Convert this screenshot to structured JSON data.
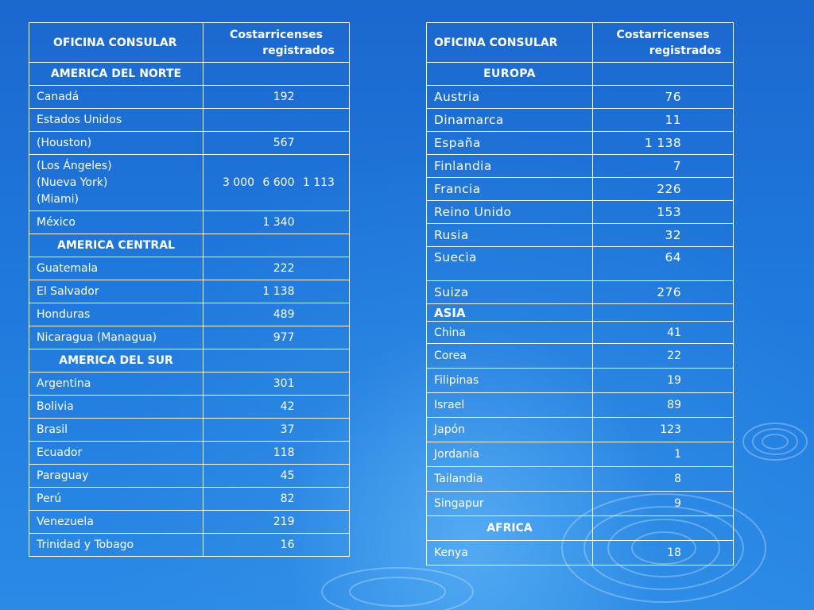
{
  "left_table": {
    "header": {
      "office": "OFICINA CONSULAR",
      "count_l1": "Costarricenses",
      "count_l2": "registrados"
    },
    "america_norte": "AMERICA DEL NORTE",
    "canada": {
      "name": "Canadá",
      "count": "192"
    },
    "estados_unidos": "Estados Unidos",
    "houston": {
      "name": "(Houston)",
      "count": "567"
    },
    "usa_cities": {
      "names": [
        "(Los Ángeles)",
        "(Nueva York)",
        "(Miami)"
      ],
      "counts": [
        "3 000",
        "6 600",
        "1 113"
      ]
    },
    "mexico": {
      "name": "México",
      "count": "1 340"
    },
    "america_central": "AMERICA CENTRAL",
    "central_rows": [
      {
        "name": "Guatemala",
        "count": "222"
      },
      {
        "name": "El Salvador",
        "count": "1 138"
      },
      {
        "name": "Honduras",
        "count": "489"
      },
      {
        "name": "Nicaragua (Managua)",
        "count": "977"
      }
    ],
    "america_sur": "AMERICA DEL SUR",
    "sur_rows": [
      {
        "name": "Argentina",
        "count": "301"
      },
      {
        "name": "Bolivia",
        "count": "42"
      },
      {
        "name": "Brasil",
        "count": "37"
      },
      {
        "name": "Ecuador",
        "count": "118"
      },
      {
        "name": "Paraguay",
        "count": "45"
      },
      {
        "name": "Perú",
        "count": "82"
      },
      {
        "name": "Venezuela",
        "count": "219"
      },
      {
        "name": "Trinidad y Tobago",
        "count": "16"
      }
    ]
  },
  "right_table": {
    "header": {
      "office": "OFICINA CONSULAR",
      "count_l1": "Costarricenses",
      "count_l2": "registrados"
    },
    "europa": "EUROPA",
    "europa_rows": [
      {
        "name": "Austria",
        "count": "76"
      },
      {
        "name": "Dinamarca",
        "count": "11"
      },
      {
        "name": "España",
        "count": "1 138"
      },
      {
        "name": "Finlandia",
        "count": "7"
      },
      {
        "name": "Francia",
        "count": "226"
      },
      {
        "name": "Reino Unido",
        "count": "153"
      },
      {
        "name": "Rusia",
        "count": "32"
      },
      {
        "name": "Suecia",
        "count": "64"
      },
      {
        "name": "Suiza",
        "count": "276"
      }
    ],
    "asia": "ASIA",
    "asia_rows": [
      {
        "name": "China",
        "count": "41"
      },
      {
        "name": "Corea",
        "count": "22"
      },
      {
        "name": "Filipinas",
        "count": "19"
      },
      {
        "name": "Israel",
        "count": "89"
      },
      {
        "name": "Japón",
        "count": "123"
      },
      {
        "name": "Jordania",
        "count": "1"
      },
      {
        "name": "Tailandia",
        "count": "8"
      },
      {
        "name": "Singapur",
        "count": "9"
      }
    ],
    "africa": "AFRICA",
    "africa_rows": [
      {
        "name": "Kenya",
        "count": "18"
      }
    ]
  },
  "colors": {
    "background": "#1f78dc",
    "text": "#ffffff",
    "border": "#ffffff"
  }
}
